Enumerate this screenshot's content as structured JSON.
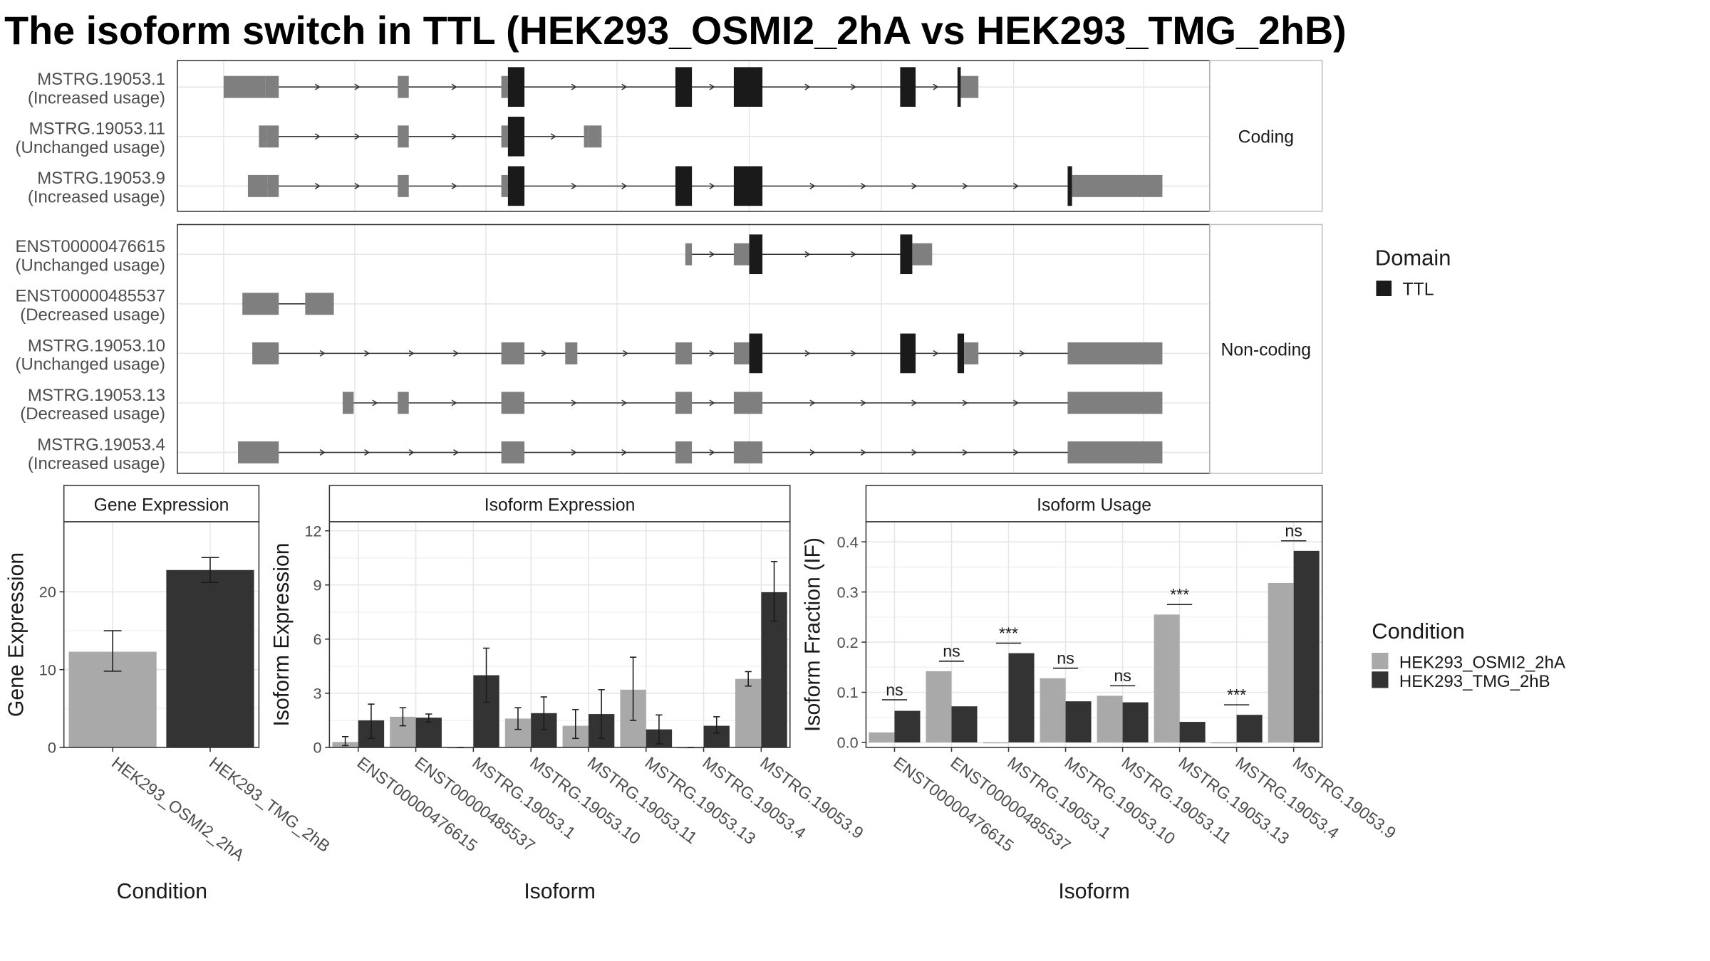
{
  "title": "The isoform switch in TTL (HEK293_OSMI2_2hA vs HEK293_TMG_2hB)",
  "colors": {
    "utr": "#7f7f7f",
    "domain": "#1a1a1a",
    "osmi": "#a9a9a9",
    "tmg": "#333333",
    "panel_border": "#333333",
    "strip_bg": "#ffffff",
    "grid": "#e6e6e6"
  },
  "legend_domain": {
    "title": "Domain",
    "items": [
      {
        "label": "TTL",
        "color": "#1a1a1a"
      }
    ]
  },
  "legend_condition": {
    "title": "Condition",
    "items": [
      {
        "label": "HEK293_OSMI2_2hA",
        "color": "#a9a9a9"
      },
      {
        "label": "HEK293_TMG_2hB",
        "color": "#333333"
      }
    ]
  },
  "structure": {
    "groups": [
      {
        "label": "Coding",
        "rows": [
          {
            "name": "MSTRG.19053.1",
            "usage": "(Increased usage)",
            "span": [
              203,
              880
            ],
            "blocks": [
              [
                203,
                241,
                "u"
              ],
              [
                241,
                253,
                "u"
              ],
              [
                361,
                371,
                "u"
              ],
              [
                455,
                461,
                "u"
              ],
              [
                461,
                476,
                "d"
              ],
              [
                613,
                628,
                "d"
              ],
              [
                666,
                692,
                "d"
              ],
              [
                817,
                831,
                "d"
              ],
              [
                869,
                872,
                "d"
              ],
              [
                872,
                888,
                "u"
              ]
            ]
          },
          {
            "name": "MSTRG.19053.11",
            "usage": "(Unchanged usage)",
            "span": [
              235,
              546
            ],
            "blocks": [
              [
                235,
                242,
                "u"
              ],
              [
                242,
                253,
                "u"
              ],
              [
                361,
                371,
                "u"
              ],
              [
                455,
                461,
                "u"
              ],
              [
                461,
                476,
                "d"
              ],
              [
                530,
                534,
                "u"
              ],
              [
                534,
                546,
                "u"
              ]
            ]
          },
          {
            "name": "MSTRG.19053.9",
            "usage": "(Increased usage)",
            "span": [
              225,
              1055
            ],
            "blocks": [
              [
                225,
                243,
                "u"
              ],
              [
                243,
                253,
                "u"
              ],
              [
                361,
                371,
                "u"
              ],
              [
                455,
                461,
                "u"
              ],
              [
                461,
                476,
                "d"
              ],
              [
                613,
                628,
                "d"
              ],
              [
                666,
                692,
                "d"
              ],
              [
                969,
                973,
                "d"
              ],
              [
                973,
                1055,
                "u"
              ]
            ]
          }
        ]
      },
      {
        "label": "Non-coding",
        "rows": [
          {
            "name": "ENST00000476615",
            "usage": "(Unchanged usage)",
            "span": [
              622,
              846
            ],
            "blocks": [
              [
                622,
                628,
                "u"
              ],
              [
                666,
                680,
                "u"
              ],
              [
                680,
                692,
                "d"
              ],
              [
                817,
                828,
                "d"
              ],
              [
                828,
                846,
                "u"
              ]
            ]
          },
          {
            "name": "ENST00000485537",
            "usage": "(Decreased usage)",
            "span": [
              220,
              303
            ],
            "blocks": [
              [
                220,
                253,
                "u"
              ],
              [
                277,
                303,
                "u"
              ]
            ]
          },
          {
            "name": "MSTRG.19053.10",
            "usage": "(Unchanged usage)",
            "span": [
              229,
              1055
            ],
            "blocks": [
              [
                229,
                253,
                "u"
              ],
              [
                455,
                476,
                "u"
              ],
              [
                513,
                524,
                "u"
              ],
              [
                613,
                628,
                "u"
              ],
              [
                666,
                680,
                "u"
              ],
              [
                680,
                692,
                "d"
              ],
              [
                817,
                831,
                "d"
              ],
              [
                869,
                875,
                "d"
              ],
              [
                875,
                888,
                "u"
              ],
              [
                969,
                1055,
                "u"
              ]
            ]
          },
          {
            "name": "MSTRG.19053.13",
            "usage": "(Decreased usage)",
            "span": [
              311,
              1055
            ],
            "blocks": [
              [
                311,
                321,
                "u"
              ],
              [
                361,
                371,
                "u"
              ],
              [
                455,
                476,
                "u"
              ],
              [
                613,
                628,
                "u"
              ],
              [
                666,
                692,
                "u"
              ],
              [
                969,
                1055,
                "u"
              ]
            ]
          },
          {
            "name": "MSTRG.19053.4",
            "usage": "(Increased usage)",
            "span": [
              216,
              1055
            ],
            "blocks": [
              [
                216,
                253,
                "u"
              ],
              [
                455,
                476,
                "u"
              ],
              [
                613,
                628,
                "u"
              ],
              [
                666,
                692,
                "u"
              ],
              [
                969,
                1055,
                "u"
              ]
            ]
          }
        ]
      }
    ]
  },
  "chart_data": [
    {
      "type": "bar",
      "title": "Gene Expression",
      "xlabel": "Condition",
      "ylabel": "Gene Expression",
      "ylim": [
        0,
        29
      ],
      "yticks": [
        0,
        10,
        20
      ],
      "categories": [
        "HEK293_OSMI2_2hA",
        "HEK293_TMG_2hB"
      ],
      "values": [
        12.3,
        22.8
      ],
      "err_low": [
        9.8,
        21.2
      ],
      "err_high": [
        15.0,
        24.4
      ],
      "colors": [
        "#a9a9a9",
        "#333333"
      ]
    },
    {
      "type": "bar",
      "title": "Isoform Expression",
      "xlabel": "Isoform",
      "ylabel": "Isoform Expression",
      "ylim": [
        0,
        12.5
      ],
      "yticks": [
        0,
        3,
        6,
        9,
        12
      ],
      "categories": [
        "ENST00000476615",
        "ENST00000485537",
        "MSTRG.19053.1",
        "MSTRG.19053.10",
        "MSTRG.19053.11",
        "MSTRG.19053.13",
        "MSTRG.19053.4",
        "MSTRG.19053.9"
      ],
      "series": [
        {
          "name": "HEK293_OSMI2_2hA",
          "values": [
            0.3,
            1.7,
            0.0,
            1.6,
            1.2,
            3.2,
            0.0,
            3.8
          ],
          "err_low": [
            0.1,
            1.2,
            0.0,
            1.0,
            0.5,
            1.5,
            0.0,
            3.4
          ],
          "err_high": [
            0.6,
            2.2,
            0.0,
            2.2,
            2.1,
            5.0,
            0.0,
            4.2
          ]
        },
        {
          "name": "HEK293_TMG_2hB",
          "values": [
            1.5,
            1.65,
            4.0,
            1.9,
            1.85,
            1.0,
            1.2,
            8.6
          ],
          "err_low": [
            0.5,
            1.4,
            2.5,
            1.0,
            0.5,
            0.2,
            0.8,
            7.0
          ],
          "err_high": [
            2.4,
            1.85,
            5.5,
            2.8,
            3.2,
            1.8,
            1.7,
            10.3
          ]
        }
      ]
    },
    {
      "type": "bar",
      "title": "Isoform Usage",
      "xlabel": "Isoform",
      "ylabel": "Isoform Fraction (IF)",
      "ylim": [
        -0.01,
        0.44
      ],
      "yticks": [
        0.0,
        0.1,
        0.2,
        0.3,
        0.4
      ],
      "ytick_labels": [
        "0.0",
        "0.1",
        "0.2",
        "0.3",
        "0.4"
      ],
      "categories": [
        "ENST00000476615",
        "ENST00000485537",
        "MSTRG.19053.1",
        "MSTRG.19053.10",
        "MSTRG.19053.11",
        "MSTRG.19053.13",
        "MSTRG.19053.4",
        "MSTRG.19053.9"
      ],
      "series": [
        {
          "name": "HEK293_OSMI2_2hA",
          "values": [
            0.02,
            0.142,
            0.0,
            0.128,
            0.093,
            0.255,
            0.0,
            0.318
          ]
        },
        {
          "name": "HEK293_TMG_2hB",
          "values": [
            0.063,
            0.072,
            0.178,
            0.082,
            0.08,
            0.041,
            0.055,
            0.382
          ]
        }
      ],
      "annotations": [
        {
          "label": "ns",
          "level": 0.085
        },
        {
          "label": "ns",
          "level": 0.162
        },
        {
          "label": "***",
          "level": 0.198
        },
        {
          "label": "ns",
          "level": 0.148
        },
        {
          "label": "ns",
          "level": 0.113
        },
        {
          "label": "***",
          "level": 0.275
        },
        {
          "label": "***",
          "level": 0.075
        },
        {
          "label": "ns",
          "level": 0.402
        }
      ]
    }
  ]
}
